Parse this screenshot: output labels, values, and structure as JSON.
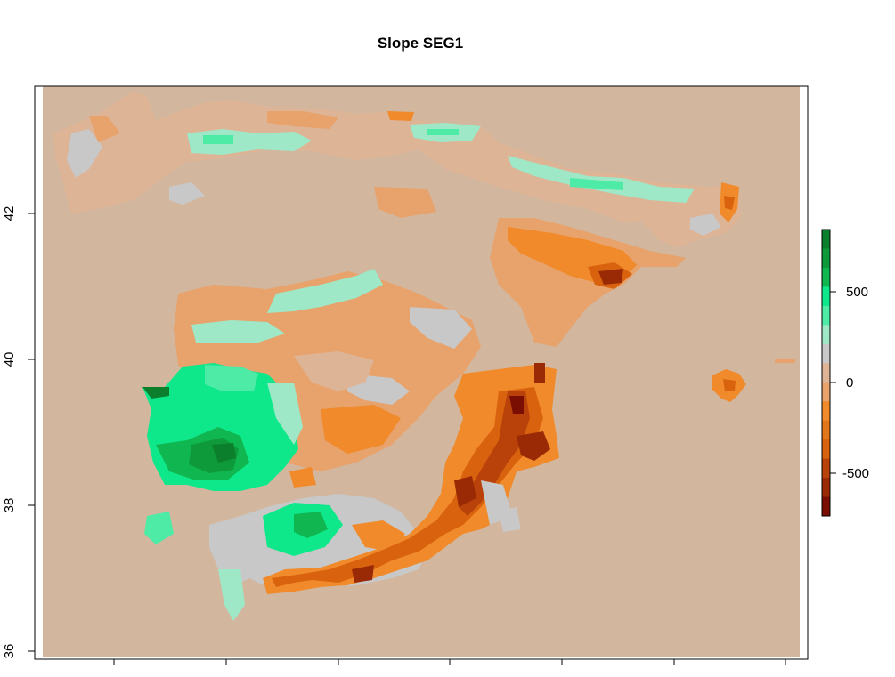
{
  "title": "Slope SEG1",
  "map": {
    "y_ticks": [
      "36",
      "38",
      "40",
      "42"
    ],
    "x_tick_count": 7,
    "background_color": "#D2B79E",
    "palette": {
      "deep_green": "#0B7F2B",
      "mid_green": "#12A84A",
      "bright_green": "#0EE88A",
      "mint": "#9EE8C8",
      "neutral": "#C8C8C8",
      "light_tan": "#DDB496",
      "light_orange": "#E8A26B",
      "orange": "#F08A2A",
      "dark_orange": "#D96A0E",
      "rust": "#B8420A",
      "maroon": "#7A0E02"
    }
  },
  "legend": {
    "ticks": [
      "500",
      "0",
      "-500"
    ],
    "colors_top_to_bottom": [
      "#0B7F2B",
      "#0E9A3A",
      "#10B650",
      "#0EE88A",
      "#4DEBA6",
      "#9EE8C8",
      "#C8C8C8",
      "#DDB496",
      "#E8A26B",
      "#F08A2A",
      "#E2761A",
      "#D9620F",
      "#B8420A",
      "#9A2A05",
      "#7A0E02"
    ]
  }
}
